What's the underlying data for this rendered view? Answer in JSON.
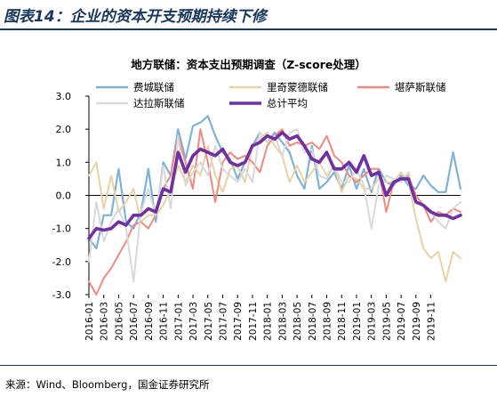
{
  "figure_title": "图表14：企业的资本开支预期持续下修",
  "source_note": "来源：Wind、Bloomberg，国金证券研究所",
  "chart_data": {
    "type": "line",
    "title": "地方联储：资本支出预期调查（Z-score处理）",
    "ylim": [
      -3.0,
      3.0
    ],
    "yticks": [
      "3.0",
      "2.0",
      "1.0",
      "0.0",
      "-1.0",
      "-2.0",
      "-3.0"
    ],
    "ytick_values": [
      3,
      2,
      1,
      0,
      -1,
      -2,
      -3
    ],
    "grid": false,
    "legend_position": "top",
    "start_month": "2016-01",
    "xtick_labels": [
      "2016-01",
      "2016-03",
      "2016-05",
      "2016-07",
      "2016-09",
      "2016-11",
      "2017-01",
      "2017-03",
      "2017-05",
      "2017-07",
      "2017-09",
      "2017-11",
      "2018-01",
      "2018-03",
      "2018-05",
      "2018-07",
      "2018-09",
      "2018-11",
      "2019-01",
      "2019-03",
      "2019-05",
      "2019-07",
      "2019-09",
      "2019-11"
    ],
    "series": [
      {
        "name": "费城联储",
        "color": "#7eb2d9",
        "width": 2.2,
        "values": [
          -1.3,
          -1.6,
          -0.6,
          -0.6,
          0.8,
          -0.8,
          -1.0,
          -0.5,
          0.8,
          -0.8,
          1.0,
          0.6,
          2.0,
          1.1,
          2.1,
          2.2,
          2.4,
          1.8,
          1.3,
          1.1,
          0.5,
          1.0,
          1.5,
          1.9,
          1.6,
          1.9,
          1.6,
          1.3,
          0.6,
          0.2,
          1.5,
          0.2,
          0.4,
          0.7,
          0.2,
          0.9,
          0.2,
          0.8,
          0.1,
          0.8,
          0.4,
          0.3,
          0.6,
          0.3,
          0.2,
          0.6,
          0.3,
          0.1,
          0.1,
          1.3,
          0.2
        ]
      },
      {
        "name": "里奇蒙德联储",
        "color": "#e8d2a6",
        "width": 2.0,
        "values": [
          0.6,
          1.0,
          -0.4,
          0.6,
          -0.5,
          -0.2,
          0.2,
          -0.8,
          -0.6,
          -0.6,
          -0.3,
          0.2,
          0.9,
          0.4,
          0.9,
          0.6,
          1.5,
          0.6,
          0.1,
          0.8,
          0.9,
          0.4,
          1.5,
          1.7,
          1.9,
          1.5,
          1.2,
          0.4,
          0.9,
          0.4,
          0.7,
          1.0,
          0.6,
          0.9,
          0.1,
          0.6,
          0.5,
          0.2,
          0.2,
          0.5,
          0.4,
          0.4,
          0.7,
          0.4,
          -0.7,
          -1.6,
          -1.9,
          -1.7,
          -2.6,
          -1.7,
          -1.9
        ]
      },
      {
        "name": "堪萨斯联储",
        "color": "#f08a80",
        "width": 2.0,
        "values": [
          -2.6,
          -3.0,
          -2.5,
          -2.2,
          -1.8,
          -1.4,
          -0.9,
          -0.8,
          -1.0,
          -0.6,
          0.2,
          0.6,
          1.8,
          1.0,
          0.2,
          2.0,
          1.0,
          -0.2,
          1.0,
          1.3,
          1.1,
          1.2,
          1.0,
          0.7,
          1.5,
          1.8,
          2.0,
          1.5,
          1.6,
          1.5,
          1.6,
          1.4,
          1.8,
          1.2,
          1.0,
          0.6,
          0.4,
          0.6,
          0.8,
          0.8,
          -0.5,
          0.4,
          0.5,
          0.6,
          0.0,
          -0.3,
          -0.8,
          -0.5,
          -0.6,
          -0.4,
          -0.5
        ]
      },
      {
        "name": "达拉斯联储",
        "color": "#d9d9d9",
        "width": 2.0,
        "values": [
          -2.0,
          -0.2,
          -1.4,
          -0.8,
          -0.4,
          -1.0,
          -2.6,
          -0.5,
          0.2,
          -0.6,
          0.9,
          -0.4,
          1.8,
          0.3,
          0.7,
          1.0,
          0.6,
          1.5,
          0.8,
          0.6,
          0.4,
          0.8,
          0.4,
          1.9,
          1.6,
          1.8,
          1.2,
          1.9,
          2.0,
          1.3,
          1.4,
          0.6,
          0.5,
          0.9,
          0.4,
          0.4,
          0.8,
          0.3,
          -1.0,
          0.3,
          0.6,
          0.5,
          0.4,
          0.7,
          -0.2,
          -0.3,
          -0.5,
          -0.8,
          -1.0,
          -0.4,
          -0.2
        ]
      },
      {
        "name": "总计平均",
        "color": "#7030a0",
        "width": 3.6,
        "values": [
          -1.3,
          -1.0,
          -1.05,
          -1.0,
          -0.8,
          -0.9,
          -0.6,
          -0.6,
          -0.4,
          -0.5,
          0.2,
          0.1,
          1.3,
          0.7,
          1.2,
          1.4,
          1.3,
          1.2,
          1.4,
          1.0,
          0.9,
          1.0,
          1.5,
          1.6,
          1.8,
          1.7,
          1.9,
          1.7,
          1.8,
          1.5,
          1.1,
          1.0,
          1.3,
          0.8,
          0.8,
          1.0,
          0.7,
          1.2,
          0.6,
          0.7,
          0.0,
          0.4,
          0.5,
          0.5,
          -0.2,
          -0.3,
          -0.5,
          -0.6,
          -0.6,
          -0.7,
          -0.6
        ]
      }
    ]
  }
}
